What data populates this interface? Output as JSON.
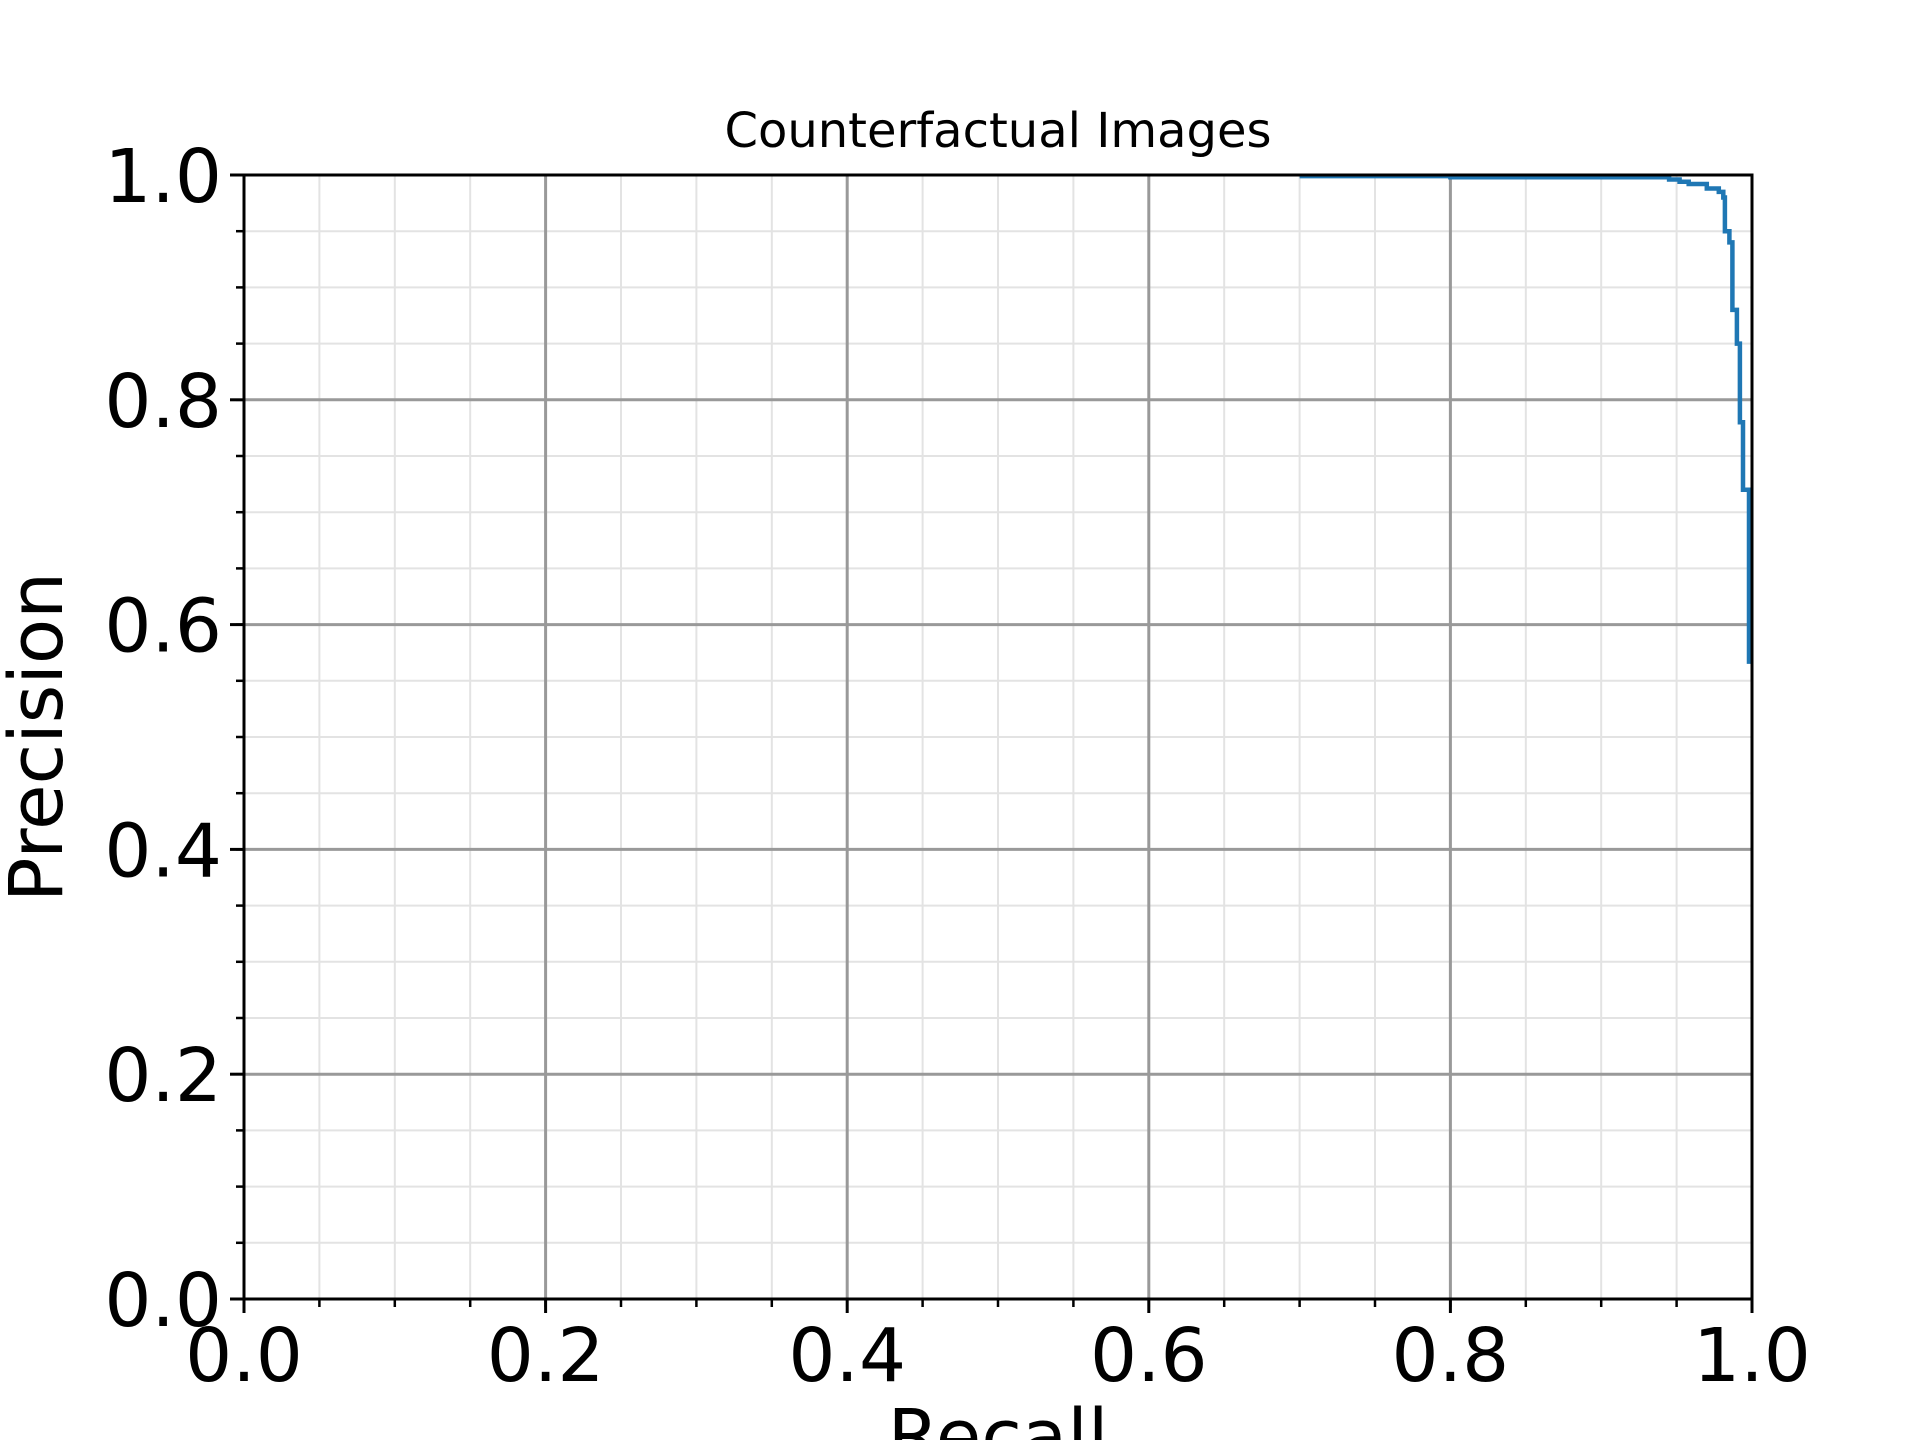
{
  "chart_data": {
    "type": "line",
    "title": "Counterfactual Images",
    "xlabel": "Recall",
    "ylabel": "Precision",
    "xlim": [
      0.0,
      1.0
    ],
    "ylim": [
      0.0,
      1.0
    ],
    "xticks": [
      "0.0",
      "0.2",
      "0.4",
      "0.6",
      "0.8",
      "1.0"
    ],
    "yticks": [
      "0.0",
      "0.2",
      "0.4",
      "0.6",
      "0.8",
      "1.0"
    ],
    "grid": true,
    "minor_grid": true,
    "series": [
      {
        "color": "#1f77b4",
        "x": [
          0.7,
          0.8,
          0.8,
          0.945,
          0.945,
          0.952,
          0.952,
          0.958,
          0.958,
          0.97,
          0.97,
          0.978,
          0.978,
          0.981,
          0.981,
          0.982,
          0.982,
          0.985,
          0.985,
          0.987,
          0.987,
          0.99,
          0.99,
          0.992,
          0.992,
          0.994,
          0.994,
          0.998,
          0.998
        ],
        "y": [
          0.999,
          0.999,
          0.998,
          0.998,
          0.996,
          0.996,
          0.994,
          0.994,
          0.992,
          0.992,
          0.988,
          0.988,
          0.985,
          0.985,
          0.98,
          0.98,
          0.95,
          0.95,
          0.94,
          0.94,
          0.88,
          0.88,
          0.85,
          0.85,
          0.78,
          0.78,
          0.72,
          0.72,
          0.565
        ]
      }
    ]
  }
}
